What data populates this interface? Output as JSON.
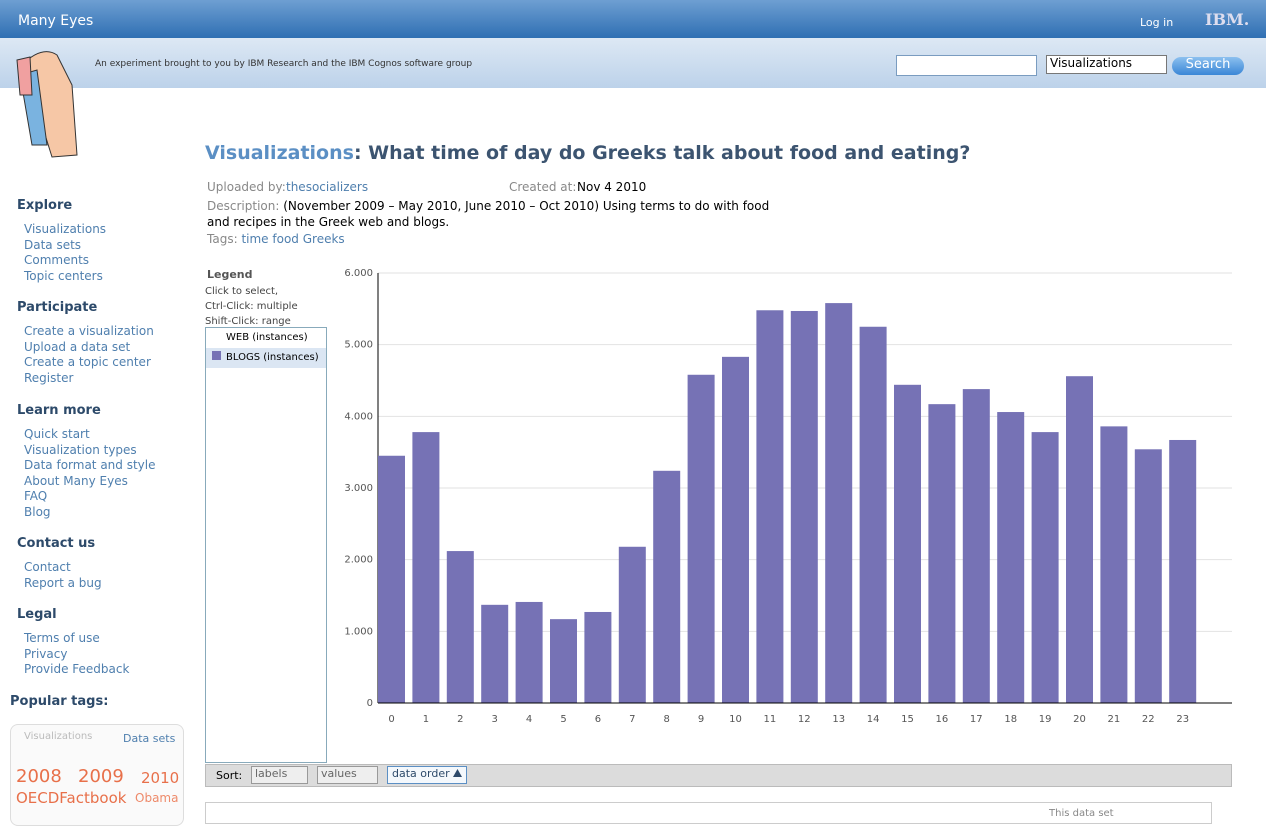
{
  "header": {
    "brand": "Many Eyes",
    "login": "Log in",
    "ibm": "IBM.",
    "tagline": "An experiment brought to you by IBM Research and the IBM Cognos software group",
    "search_select": "Visualizations",
    "search_button": "Search"
  },
  "nav": [
    {
      "title": "Explore",
      "links": [
        "Visualizations",
        "Data sets",
        "Comments",
        "Topic centers"
      ]
    },
    {
      "title": "Participate",
      "links": [
        "Create a visualization",
        "Upload a data set",
        "Create a topic center",
        "Register"
      ]
    },
    {
      "title": "Learn more",
      "links": [
        "Quick start",
        "Visualization types",
        "Data format and style",
        "About Many Eyes",
        "FAQ",
        "Blog"
      ]
    },
    {
      "title": "Contact us",
      "links": [
        "Contact",
        "Report a bug"
      ]
    },
    {
      "title": "Legal",
      "links": [
        "Terms of use",
        "Privacy",
        "Provide Feedback"
      ]
    }
  ],
  "popular_tags": {
    "title": "Popular tags:",
    "tabs": [
      "Visualizations",
      "Data sets"
    ],
    "tags": [
      "2008",
      "2009",
      "2010",
      "OECDFactbook",
      "Obama"
    ]
  },
  "page": {
    "section": "Visualizations",
    "title": ": What time of day do Greeks talk about food and eating?",
    "uploaded_label": "Uploaded by:",
    "uploader": "thesocializers",
    "created_label": "Created at:",
    "created": "Nov 4 2010",
    "description_label": "Description:",
    "description": "(November 2009 – May 2010, June 2010 – Oct 2010) Using terms to do with food and recipes in the Greek web and blogs.",
    "tags_label": "Tags:",
    "tags": [
      "time",
      "food",
      "Greeks"
    ]
  },
  "legend": {
    "title": "Legend",
    "help": [
      "Click to select,",
      "Ctrl-Click: multiple",
      "Shift-Click: range"
    ],
    "other_item": "WEB (instances)"
  },
  "sort": {
    "label": "Sort:",
    "options": [
      "labels",
      "values",
      "data order"
    ]
  },
  "footer_box": "This data set",
  "chart_data": {
    "type": "bar",
    "categories": [
      "0",
      "1",
      "2",
      "3",
      "4",
      "5",
      "6",
      "7",
      "8",
      "9",
      "10",
      "11",
      "12",
      "13",
      "14",
      "15",
      "16",
      "17",
      "18",
      "19",
      "20",
      "21",
      "22",
      "23"
    ],
    "series": [
      {
        "name": "BLOGS (instances)",
        "color": "#7672b5",
        "values": [
          3450,
          3780,
          2120,
          1370,
          1410,
          1170,
          1270,
          2180,
          3240,
          4580,
          4830,
          5480,
          5470,
          5580,
          5250,
          4440,
          4170,
          4380,
          4060,
          3780,
          4560,
          3860,
          3540,
          3670
        ]
      }
    ],
    "ylim": [
      0,
      6000
    ],
    "yticks": [
      {
        "value": 0,
        "label": "0"
      },
      {
        "value": 1000,
        "label": "1.000"
      },
      {
        "value": 2000,
        "label": "2.000"
      },
      {
        "value": 3000,
        "label": "3.000"
      },
      {
        "value": 4000,
        "label": "4.000"
      },
      {
        "value": 5000,
        "label": "5.000"
      },
      {
        "value": 6000,
        "label": "6.000"
      }
    ],
    "grid": true
  }
}
